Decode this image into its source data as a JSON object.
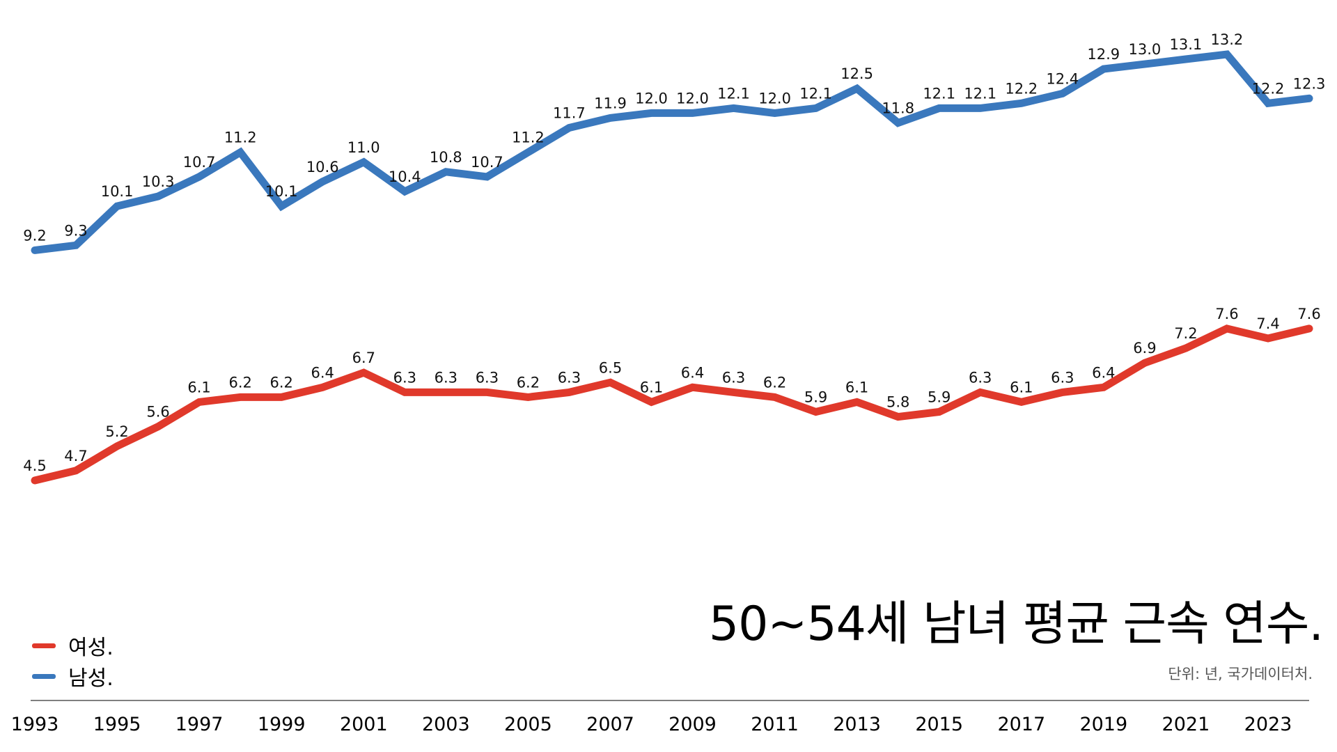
{
  "chart_data": {
    "type": "line",
    "title": "50~54세 남녀 평균 근속 연수.",
    "source": "단위: 년, 국가데이터처.",
    "x": [
      1993,
      1994,
      1995,
      1996,
      1997,
      1998,
      1999,
      2000,
      2001,
      2002,
      2003,
      2004,
      2005,
      2006,
      2007,
      2008,
      2009,
      2010,
      2011,
      2012,
      2013,
      2014,
      2015,
      2016,
      2017,
      2018,
      2019,
      2020,
      2021,
      2022,
      2023,
      2024
    ],
    "x_tick_labels": [
      "1993",
      "1995",
      "1997",
      "1999",
      "2001",
      "2003",
      "2005",
      "2007",
      "2009",
      "2011",
      "2013",
      "2015",
      "2017",
      "2019",
      "2021",
      "2023"
    ],
    "series": [
      {
        "name": "남성.",
        "color": "#3a78bd",
        "values": [
          9.2,
          9.3,
          10.1,
          10.3,
          10.7,
          11.2,
          10.1,
          10.6,
          11.0,
          10.4,
          10.8,
          10.7,
          11.2,
          11.7,
          11.9,
          12.0,
          12.0,
          12.1,
          12.0,
          12.1,
          12.5,
          11.8,
          12.1,
          12.1,
          12.2,
          12.4,
          12.9,
          13.0,
          13.1,
          13.2,
          12.2,
          12.3
        ],
        "labels": [
          "9.2",
          "9.3",
          "10.1",
          "10.3",
          "10.7",
          "11.2",
          "10.1",
          "10.6",
          "11.0",
          "10.4",
          "10.8",
          "10.7",
          "11.2",
          "11.7",
          "11.9",
          "12.0",
          "12.0",
          "12.1",
          "12.0",
          "12.1",
          "12.5",
          "11.8",
          "12.1",
          "12.1",
          "12.2",
          "12.4",
          "12.9",
          "13.0",
          "13.1",
          "13.2",
          "12.2",
          "12.3"
        ]
      },
      {
        "name": "여성.",
        "color": "#e0392b",
        "values": [
          4.5,
          4.7,
          5.2,
          5.6,
          6.1,
          6.2,
          6.2,
          6.4,
          6.7,
          6.3,
          6.3,
          6.3,
          6.2,
          6.3,
          6.5,
          6.1,
          6.4,
          6.3,
          6.2,
          5.9,
          6.1,
          5.8,
          5.9,
          6.3,
          6.1,
          6.3,
          6.4,
          6.9,
          7.2,
          7.6,
          7.4,
          7.6
        ],
        "labels": [
          "4.5",
          "4.7",
          "5.2",
          "5.6",
          "6.1",
          "6.2",
          "6.2",
          "6.4",
          "6.7",
          "6.3",
          "6.3",
          "6.3",
          "6.2",
          "6.3",
          "6.5",
          "6.1",
          "6.4",
          "6.3",
          "6.2",
          "5.9",
          "6.1",
          "5.8",
          "5.9",
          "6.3",
          "6.1",
          "6.3",
          "6.4",
          "6.9",
          "7.2",
          "7.6",
          "7.4",
          "7.6"
        ]
      }
    ],
    "legend": [
      {
        "name": "여성.",
        "color": "#e0392b"
      },
      {
        "name": "남성.",
        "color": "#3a78bd"
      }
    ],
    "legend_position": "bottom-left",
    "grid": false,
    "xlabel": "",
    "ylabel": ""
  }
}
